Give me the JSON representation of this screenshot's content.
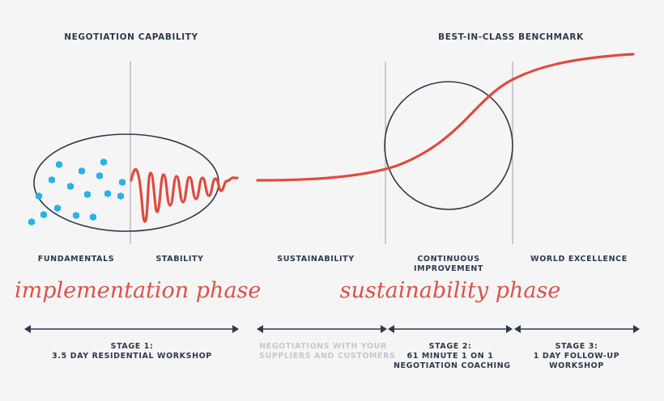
{
  "colors": {
    "curve": "#e04a3f",
    "ink": "#2d3a4d",
    "divider": "#a9aeb5",
    "dots": "#2ab1e8",
    "muted": "#c4c8ce",
    "background": "#f5f5f5"
  },
  "top_labels": {
    "capability": "NEGOTIATION CAPABILITY",
    "benchmark": "BEST-IN-CLASS BENCHMARK"
  },
  "section_labels": {
    "fundamentals": "FUNDAMENTALS",
    "stability": "STABILITY",
    "sustainability": "SUSTAINABILITY",
    "continuous_improvement": "CONTINUOUS IMPROVEMENT",
    "world_excellence": "WORLD EXCELLENCE"
  },
  "phases": {
    "implementation": "implementation phase",
    "sustainability": "sustainability phase"
  },
  "stages": {
    "stage1_title": "STAGE 1:",
    "stage1_desc": "3.5 DAY RESIDENTIAL WORKSHOP",
    "negotiations_line1": "NEGOTIATIONS WITH YOUR",
    "negotiations_line2": "SUPPLIERS AND CUSTOMERS",
    "stage2_title": "STAGE 2:",
    "stage2_line1": "61 MINUTE 1 ON 1",
    "stage2_line2": "NEGOTIATION COACHING",
    "stage3_title": "STAGE 3:",
    "stage3_line1": "1 DAY FOLLOW-UP",
    "stage3_line2": "WORKSHOP"
  }
}
